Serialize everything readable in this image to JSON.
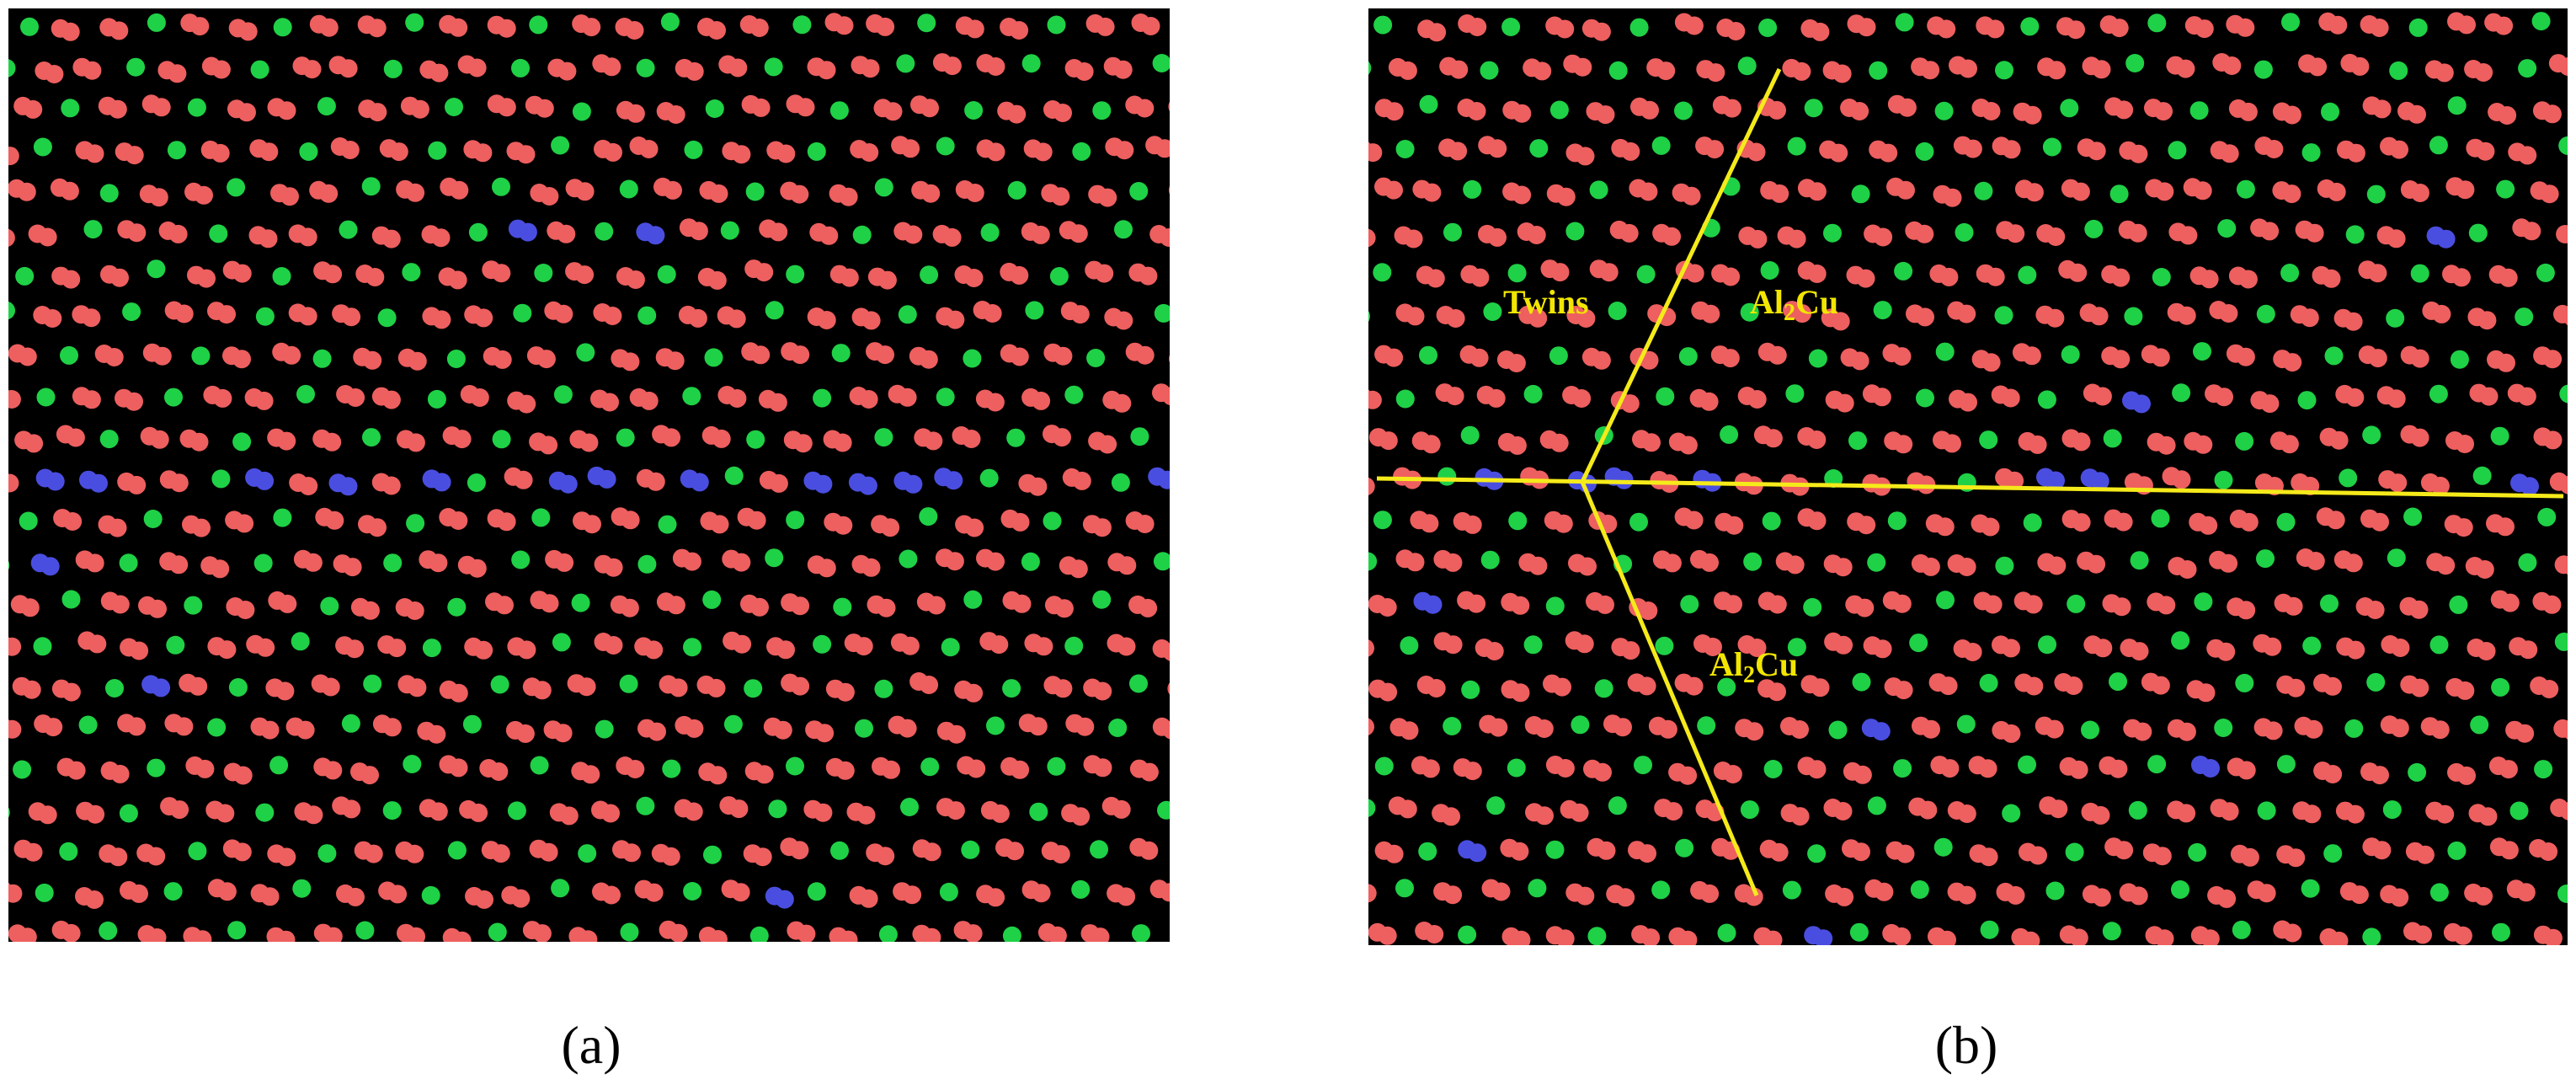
{
  "panels": [
    {
      "caption": "(a)"
    },
    {
      "caption": "(b)",
      "labels": [
        {
          "text": "Twins"
        },
        {
          "text": "Al",
          "sub": "2",
          "rest": "Cu"
        },
        {
          "text": "Al",
          "sub": "2",
          "rest": "Cu"
        }
      ]
    }
  ]
}
